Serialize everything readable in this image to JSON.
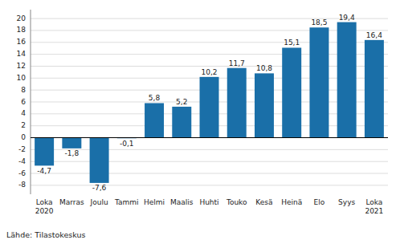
{
  "chart_data": {
    "type": "bar",
    "categories": [
      "Loka\n2020",
      "Marras",
      "Joulu",
      "Tammi",
      "Helmi",
      "Maalis",
      "Huhti",
      "Touko",
      "Kesä",
      "Heinä",
      "Elo",
      "Syys",
      "Loka\n2021"
    ],
    "values": [
      -4.7,
      -1.8,
      -7.6,
      -0.1,
      5.8,
      5.2,
      10.2,
      11.7,
      10.8,
      15.1,
      18.5,
      19.4,
      16.4
    ],
    "value_labels": [
      "-4,7",
      "-1,8",
      "-7,6",
      "-0,1",
      "5,8",
      "5,2",
      "10,2",
      "11,7",
      "10,8",
      "15,1",
      "18,5",
      "19,4",
      "16,4"
    ],
    "data_labels": true,
    "color": "#1a6fa8",
    "ylim": [
      -9.5,
      21.5
    ],
    "yticks": [
      -8,
      -6,
      -4,
      -2,
      0,
      2,
      4,
      6,
      8,
      10,
      12,
      14,
      16,
      18,
      20
    ],
    "grid": true,
    "annotations": [
      "Lähde: Tilastokeskus"
    ]
  }
}
